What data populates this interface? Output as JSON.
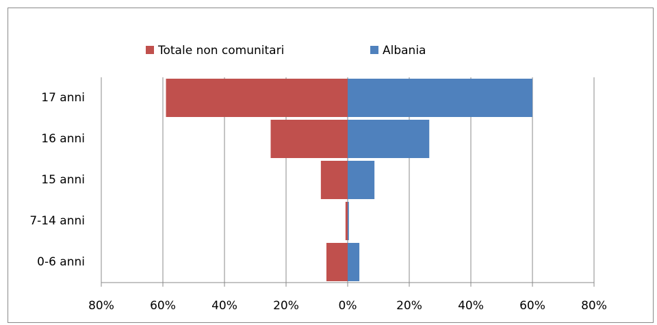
{
  "chart_data": {
    "type": "bar",
    "orientation": "horizontal",
    "stacked": true,
    "categories": [
      "0-6 anni",
      "7-14 anni",
      "15 anni",
      "16 anni",
      "17 anni"
    ],
    "series": [
      {
        "name": "Totale non comunitari",
        "color": "#c0504d",
        "values": [
          -6.9,
          -0.7,
          -8.7,
          -25,
          -59
        ]
      },
      {
        "name": "Albania",
        "color": "#4f81bd",
        "values": [
          3.8,
          0.4,
          8.7,
          26.5,
          60
        ]
      }
    ],
    "xlim": [
      -80,
      80
    ],
    "xticks": [
      {
        "value": -80,
        "label": "80%"
      },
      {
        "value": -60,
        "label": "60%"
      },
      {
        "value": -40,
        "label": "40%"
      },
      {
        "value": -20,
        "label": "20%"
      },
      {
        "value": 0,
        "label": "0%"
      },
      {
        "value": 20,
        "label": "20%"
      },
      {
        "value": 40,
        "label": "40%"
      },
      {
        "value": 60,
        "label": "60%"
      },
      {
        "value": 80,
        "label": "80%"
      }
    ],
    "grid": true,
    "legend": "top"
  }
}
